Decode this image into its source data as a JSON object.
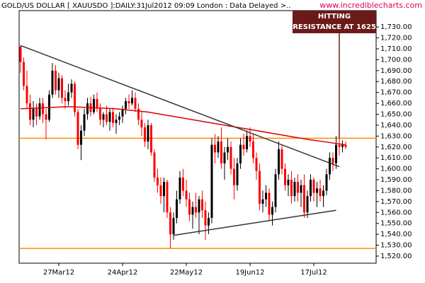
{
  "chart_data": {
    "type": "candlestick",
    "title": "GOLD/US DOLLAR [ XAUUSDO ]:DAILY:31Jul2012 09:09 London : Data Delayed >..",
    "source": "www.incrediblecharts.com",
    "x": [
      "2012-03-09",
      "2012-03-12",
      "2012-03-13",
      "2012-03-14",
      "2012-03-15",
      "2012-03-16",
      "2012-03-19",
      "2012-03-20",
      "2012-03-21",
      "2012-03-22",
      "2012-03-23",
      "2012-03-26",
      "2012-03-27",
      "2012-03-28",
      "2012-03-29",
      "2012-03-30",
      "2012-04-02",
      "2012-04-03",
      "2012-04-04",
      "2012-04-05",
      "2012-04-06",
      "2012-04-09",
      "2012-04-10",
      "2012-04-11",
      "2012-04-12",
      "2012-04-13",
      "2012-04-16",
      "2012-04-17",
      "2012-04-18",
      "2012-04-19",
      "2012-04-20",
      "2012-04-23",
      "2012-04-24",
      "2012-04-25",
      "2012-04-26",
      "2012-04-27",
      "2012-04-30",
      "2012-05-01",
      "2012-05-02",
      "2012-05-03",
      "2012-05-04",
      "2012-05-07",
      "2012-05-08",
      "2012-05-09",
      "2012-05-10",
      "2012-05-11",
      "2012-05-14",
      "2012-05-15",
      "2012-05-16",
      "2012-05-17",
      "2012-05-18",
      "2012-05-21",
      "2012-05-22",
      "2012-05-23",
      "2012-05-24",
      "2012-05-25",
      "2012-05-28",
      "2012-05-29",
      "2012-05-30",
      "2012-05-31",
      "2012-06-01",
      "2012-06-04",
      "2012-06-05",
      "2012-06-06",
      "2012-06-07",
      "2012-06-08",
      "2012-06-11",
      "2012-06-12",
      "2012-06-13",
      "2012-06-14",
      "2012-06-15",
      "2012-06-18",
      "2012-06-19",
      "2012-06-20",
      "2012-06-21",
      "2012-06-22",
      "2012-06-25",
      "2012-06-26",
      "2012-06-27",
      "2012-06-28",
      "2012-06-29",
      "2012-07-02",
      "2012-07-03",
      "2012-07-04",
      "2012-07-05",
      "2012-07-06",
      "2012-07-09",
      "2012-07-10",
      "2012-07-11",
      "2012-07-12",
      "2012-07-13",
      "2012-07-16",
      "2012-07-17",
      "2012-07-18",
      "2012-07-19",
      "2012-07-20",
      "2012-07-23",
      "2012-07-24",
      "2012-07-25",
      "2012-07-26",
      "2012-07-27",
      "2012-07-30",
      "2012-07-31"
    ],
    "open": [
      1712,
      1698,
      1676,
      1660,
      1645,
      1655,
      1648,
      1660,
      1650,
      1645,
      1668,
      1690,
      1672,
      1683,
      1665,
      1662,
      1670,
      1678,
      1652,
      1622,
      1635,
      1650,
      1660,
      1652,
      1664,
      1656,
      1645,
      1650,
      1643,
      1652,
      1642,
      1645,
      1648,
      1655,
      1662,
      1660,
      1665,
      1655,
      1645,
      1638,
      1625,
      1640,
      1615,
      1592,
      1585,
      1575,
      1588,
      1560,
      1540,
      1555,
      1572,
      1592,
      1580,
      1572,
      1558,
      1565,
      1560,
      1572,
      1562,
      1548,
      1555,
      1622,
      1615,
      1625,
      1605,
      1615,
      1620,
      1600,
      1585,
      1605,
      1622,
      1618,
      1630,
      1625,
      1610,
      1598,
      1568,
      1572,
      1578,
      1558,
      1565,
      1595,
      1618,
      1600,
      1585,
      1590,
      1575,
      1588,
      1578,
      1585,
      1560,
      1575,
      1590,
      1578,
      1582,
      1575,
      1580,
      1595,
      1610,
      1605,
      1622,
      1620,
      1622
    ],
    "high": [
      1713,
      1702,
      1690,
      1668,
      1662,
      1660,
      1665,
      1665,
      1655,
      1672,
      1697,
      1695,
      1688,
      1686,
      1672,
      1678,
      1682,
      1680,
      1655,
      1640,
      1655,
      1665,
      1666,
      1668,
      1670,
      1660,
      1652,
      1658,
      1655,
      1656,
      1650,
      1652,
      1658,
      1665,
      1668,
      1672,
      1670,
      1660,
      1652,
      1642,
      1645,
      1642,
      1618,
      1600,
      1592,
      1592,
      1590,
      1565,
      1560,
      1580,
      1598,
      1600,
      1590,
      1578,
      1570,
      1578,
      1575,
      1580,
      1570,
      1560,
      1628,
      1632,
      1630,
      1638,
      1620,
      1628,
      1625,
      1610,
      1610,
      1628,
      1632,
      1635,
      1638,
      1632,
      1615,
      1605,
      1580,
      1585,
      1582,
      1570,
      1600,
      1625,
      1622,
      1605,
      1595,
      1598,
      1592,
      1595,
      1590,
      1595,
      1580,
      1595,
      1592,
      1588,
      1590,
      1585,
      1600,
      1615,
      1615,
      1630,
      1628,
      1626,
      1625
    ],
    "low": [
      1688,
      1672,
      1655,
      1640,
      1638,
      1640,
      1645,
      1642,
      1627,
      1643,
      1665,
      1668,
      1665,
      1660,
      1655,
      1658,
      1665,
      1648,
      1618,
      1608,
      1630,
      1645,
      1648,
      1650,
      1652,
      1640,
      1638,
      1640,
      1635,
      1638,
      1632,
      1640,
      1642,
      1650,
      1655,
      1658,
      1652,
      1640,
      1630,
      1620,
      1618,
      1612,
      1588,
      1578,
      1568,
      1560,
      1555,
      1527,
      1535,
      1550,
      1568,
      1575,
      1565,
      1552,
      1545,
      1555,
      1540,
      1555,
      1535,
      1540,
      1550,
      1605,
      1610,
      1600,
      1590,
      1608,
      1595,
      1572,
      1580,
      1600,
      1612,
      1615,
      1620,
      1605,
      1590,
      1562,
      1560,
      1565,
      1552,
      1548,
      1560,
      1590,
      1595,
      1580,
      1575,
      1568,
      1570,
      1570,
      1565,
      1555,
      1555,
      1570,
      1570,
      1565,
      1570,
      1565,
      1576,
      1590,
      1598,
      1600,
      1612,
      1615,
      1618
    ],
    "close": [
      1698,
      1676,
      1660,
      1645,
      1655,
      1648,
      1660,
      1650,
      1645,
      1668,
      1690,
      1672,
      1683,
      1665,
      1662,
      1670,
      1678,
      1652,
      1622,
      1635,
      1650,
      1660,
      1652,
      1664,
      1656,
      1645,
      1650,
      1643,
      1652,
      1642,
      1645,
      1648,
      1655,
      1662,
      1660,
      1665,
      1655,
      1645,
      1638,
      1625,
      1640,
      1615,
      1592,
      1585,
      1575,
      1588,
      1560,
      1540,
      1555,
      1572,
      1592,
      1580,
      1572,
      1558,
      1565,
      1560,
      1572,
      1562,
      1548,
      1555,
      1622,
      1615,
      1625,
      1605,
      1615,
      1620,
      1600,
      1585,
      1605,
      1622,
      1618,
      1630,
      1625,
      1610,
      1598,
      1568,
      1572,
      1578,
      1558,
      1565,
      1595,
      1618,
      1600,
      1585,
      1590,
      1575,
      1588,
      1578,
      1585,
      1560,
      1575,
      1590,
      1578,
      1582,
      1575,
      1580,
      1595,
      1610,
      1605,
      1622,
      1620,
      1622,
      1620
    ],
    "up_color": "#000000",
    "down_color": "#ff0000",
    "moving_average": {
      "color": "#dd0000",
      "x": [
        "2012-03-09",
        "2012-03-30",
        "2012-04-20",
        "2012-05-04",
        "2012-05-18",
        "2012-06-01",
        "2012-06-15",
        "2012-06-29",
        "2012-07-13",
        "2012-07-31"
      ],
      "values": [
        1655,
        1657,
        1655,
        1652,
        1647,
        1642,
        1637,
        1632,
        1627,
        1622
      ]
    },
    "trendlines": [
      {
        "color": "#333333",
        "x": [
          "2012-03-09",
          "2012-07-27"
        ],
        "values": [
          1713,
          1602
        ]
      },
      {
        "color": "#333333",
        "x": [
          "2012-05-16",
          "2012-07-26"
        ],
        "values": [
          1539,
          1562
        ]
      }
    ],
    "hlines": {
      "color": "#ff8c00",
      "values": [
        1628,
        1527
      ]
    },
    "annotation": {
      "text": [
        "HITTING",
        "RESISTANCE AT 1625"
      ],
      "x": "2012-07-27",
      "value": 1628,
      "color": "#6b1a1a"
    },
    "ylim": [
      1513.5,
      1745
    ],
    "yticks": [
      {
        "value": 1520,
        "label": "1,520.00"
      },
      {
        "value": 1530,
        "label": "1,530.00"
      },
      {
        "value": 1540,
        "label": "1,540.00"
      },
      {
        "value": 1550,
        "label": "1,550.00"
      },
      {
        "value": 1560,
        "label": "1,560.00"
      },
      {
        "value": 1570,
        "label": "1,570.00"
      },
      {
        "value": 1580,
        "label": "1,580.00"
      },
      {
        "value": 1590,
        "label": "1,590.00"
      },
      {
        "value": 1600,
        "label": "1,600.00"
      },
      {
        "value": 1610,
        "label": "1,610.00"
      },
      {
        "value": 1620,
        "label": "1,620.00"
      },
      {
        "value": 1630,
        "label": "1,630.00"
      },
      {
        "value": 1640,
        "label": "1,640.00"
      },
      {
        "value": 1650,
        "label": "1,650.00"
      },
      {
        "value": 1660,
        "label": "1,660.00"
      },
      {
        "value": 1670,
        "label": "1,670.00"
      },
      {
        "value": 1680,
        "label": "1,680.00"
      },
      {
        "value": 1690,
        "label": "1,690.00"
      },
      {
        "value": 1700,
        "label": "1,700.00"
      },
      {
        "value": 1710,
        "label": "1,710.00"
      },
      {
        "value": 1720,
        "label": "1,720.00"
      },
      {
        "value": 1730,
        "label": "1,730.00"
      }
    ],
    "xticks": [
      {
        "value": "2012-03-27",
        "label": "27Mar12"
      },
      {
        "value": "2012-04-24",
        "label": "24Apr12"
      },
      {
        "value": "2012-05-22",
        "label": "22May12"
      },
      {
        "value": "2012-06-19",
        "label": "19Jun12"
      },
      {
        "value": "2012-07-17",
        "label": "17Jul12"
      }
    ]
  }
}
